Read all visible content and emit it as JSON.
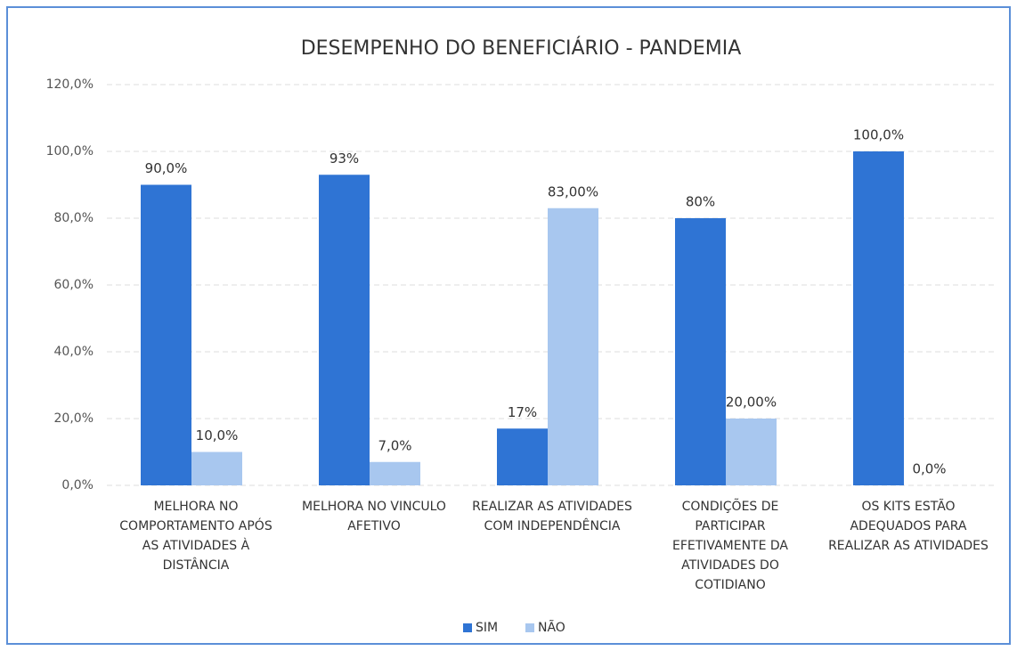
{
  "chart_data": {
    "type": "bar",
    "title": "DESEMPENHO DO BENEFICIÁRIO - PANDEMIA",
    "categories": [
      "MELHORA NO COMPORTAMENTO APÓS AS ATIVIDADES À DISTÂNCIA",
      "MELHORA NO VINCULO AFETIVO",
      "REALIZAR AS ATIVIDADES COM INDEPENDÊNCIA",
      "CONDIÇÕES DE PARTICIPAR EFETIVAMENTE DA ATIVIDADES DO COTIDIANO",
      "OS KITS ESTÃO ADEQUADOS PARA REALIZAR AS ATIVIDADES"
    ],
    "series": [
      {
        "name": "SIM",
        "color": "#2f74d4",
        "values": [
          90,
          93,
          17,
          80,
          100
        ],
        "value_labels": [
          "90,0%",
          "93%",
          "17%",
          "80%",
          "100,0%"
        ]
      },
      {
        "name": "NÃO",
        "color": "#a8c7ef",
        "values": [
          10,
          7,
          83,
          20,
          0
        ],
        "value_labels": [
          "10,0%",
          "7,0%",
          "83,00%",
          "20,00%",
          "0,0%"
        ]
      }
    ],
    "ylim": [
      0,
      120
    ],
    "yticks": [
      {
        "value": 0,
        "label": "0,0%"
      },
      {
        "value": 20,
        "label": "20,0%"
      },
      {
        "value": 40,
        "label": "40,0%"
      },
      {
        "value": 60,
        "label": "60,0%"
      },
      {
        "value": 80,
        "label": "80,0%"
      },
      {
        "value": 100,
        "label": "100,0%"
      },
      {
        "value": 120,
        "label": "120,0%"
      }
    ],
    "grid": true,
    "legend": "bottom"
  }
}
